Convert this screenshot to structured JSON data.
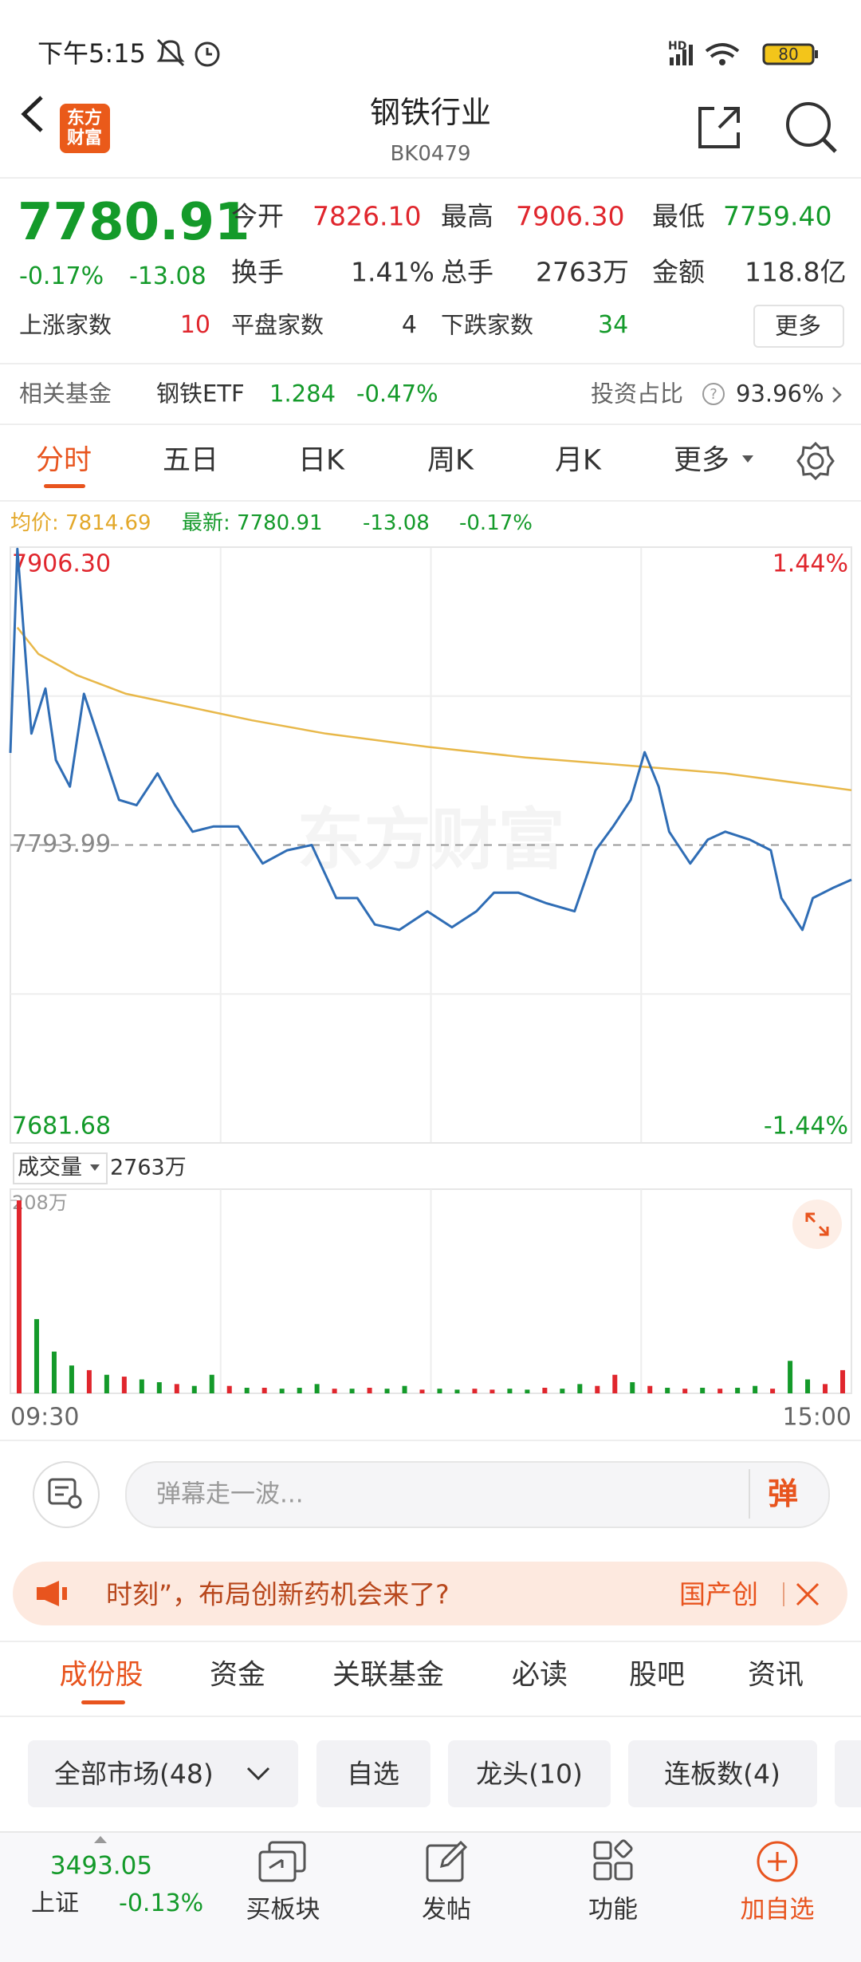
{
  "status_bar": {
    "time": "下午5:15",
    "network": "HD",
    "battery": "80"
  },
  "header": {
    "logo_top": "东方",
    "logo_bottom": "财富",
    "title": "钢铁行业",
    "code": "BK0479"
  },
  "quote": {
    "price": "7780.91",
    "change_pct": "-0.17%",
    "change": "-13.08",
    "open_label": "今开",
    "open": "7826.10",
    "high_label": "最高",
    "high": "7906.30",
    "low_label": "最低",
    "low": "7759.40",
    "turnover_label": "换手",
    "turnover": "1.41%",
    "volume_label": "总手",
    "volume": "2763万",
    "amount_label": "金额",
    "amount": "118.8亿",
    "up_label": "上涨家数",
    "up": "10",
    "flat_label": "平盘家数",
    "flat": "4",
    "down_label": "下跌家数",
    "down": "34",
    "more": "更多"
  },
  "fund": {
    "label": "相关基金",
    "name": "钢铁ETF",
    "price": "1.284",
    "pct": "-0.47%",
    "ratio_label": "投资占比",
    "ratio": "93.96%"
  },
  "tabs": [
    "分时",
    "五日",
    "日K",
    "周K",
    "月K",
    "更多"
  ],
  "chart_header": {
    "avg": "均价: 7814.69",
    "latest": "最新: 7780.91",
    "change": "-13.08",
    "pct": "-0.17%",
    "volume_label": "成交量",
    "volume": "2763万"
  },
  "chart_data": [
    {
      "type": "line",
      "watermark": "东方财富",
      "ylim": [
        7681.68,
        7906.3
      ],
      "yticks": [
        {
          "value": 7906.3,
          "label": "7906.30"
        },
        {
          "value": 7793.99,
          "label": "7793.99"
        },
        {
          "value": 7681.68,
          "label": "7681.68"
        }
      ],
      "y2lim": [
        -1.44,
        1.44
      ],
      "y2ticks": [
        {
          "value": 1.44,
          "label": "1.44%"
        },
        {
          "value": -1.44,
          "label": "-1.44%"
        }
      ],
      "series": [
        {
          "color": "#2f6db5",
          "x": [
            "09:30",
            "09:32",
            "09:34",
            "09:36",
            "09:40",
            "09:43",
            "09:47",
            "09:51",
            "09:56",
            "10:01",
            "10:06",
            "10:12",
            "10:17",
            "10:22",
            "10:28",
            "10:35",
            "10:42",
            "10:49",
            "10:56",
            "11:03",
            "11:09",
            "11:14",
            "11:21",
            "11:29",
            "13:06",
            "13:13",
            "13:18",
            "13:25",
            "13:33",
            "13:41",
            "13:47",
            "13:52",
            "13:57",
            "14:01",
            "14:05",
            "14:08",
            "14:14",
            "14:19",
            "14:24",
            "14:31",
            "14:37",
            "14:40",
            "14:46",
            "14:49",
            "14:55",
            "15:00"
          ],
          "values": [
            7828.7,
            7905.6,
            7870.9,
            7836,
            7853,
            7826,
            7816,
            7851,
            7831,
            7811,
            7809,
            7821,
            7809,
            7799,
            7801,
            7801,
            7787,
            7792,
            7794,
            7774,
            7774,
            7764,
            7762,
            7769,
            7763,
            7769,
            7776,
            7776,
            7772,
            7769,
            7792,
            7801,
            7811,
            7829,
            7816,
            7799,
            7787,
            7796,
            7799,
            7796,
            7792,
            7774,
            7762,
            7774,
            7778,
            7780.91
          ]
        },
        {
          "color": "#e8b84a",
          "x": [
            "09:32",
            "09:38",
            "09:49",
            "10:03",
            "10:21",
            "10:39",
            "11:00",
            "11:29",
            "13:27",
            "13:56",
            "14:24",
            "15:00"
          ],
          "values": [
            7876,
            7866,
            7858,
            7851,
            7846,
            7841,
            7836,
            7831,
            7827,
            7824,
            7821,
            7814.69
          ]
        }
      ]
    },
    {
      "type": "bar",
      "ylim": [
        0,
        208
      ],
      "yticks": [
        {
          "value": 208,
          "label": "208万"
        }
      ],
      "xticks": [
        "09:30",
        "15:00"
      ],
      "values": [
        208,
        80,
        45,
        30,
        25,
        20,
        18,
        15,
        12,
        10,
        8,
        20,
        8,
        6,
        6,
        5,
        6,
        10,
        5,
        5,
        6,
        5,
        8,
        4,
        5,
        4,
        5,
        4,
        5,
        4,
        6,
        5,
        10,
        8,
        20,
        12,
        8,
        6,
        5,
        6,
        5,
        6,
        8,
        5,
        35,
        15,
        10,
        25
      ],
      "colors": [
        "#e0262d",
        "#149a2a",
        "#149a2a",
        "#149a2a",
        "#e0262d",
        "#149a2a",
        "#e0262d",
        "#149a2a",
        "#149a2a",
        "#e0262d",
        "#149a2a",
        "#149a2a",
        "#e0262d",
        "#149a2a",
        "#e0262d",
        "#149a2a",
        "#149a2a",
        "#149a2a",
        "#e0262d",
        "#149a2a",
        "#e0262d",
        "#149a2a",
        "#149a2a",
        "#e0262d",
        "#149a2a",
        "#149a2a",
        "#e0262d",
        "#e0262d",
        "#149a2a",
        "#149a2a",
        "#e0262d",
        "#149a2a",
        "#149a2a",
        "#e0262d",
        "#e0262d",
        "#149a2a",
        "#e0262d",
        "#149a2a",
        "#e0262d",
        "#149a2a",
        "#e0262d",
        "#149a2a",
        "#149a2a",
        "#e0262d",
        "#149a2a",
        "#149a2a",
        "#e0262d",
        "#e0262d"
      ]
    }
  ],
  "danmaku": {
    "placeholder": "弹幕走一波...",
    "button": "弹"
  },
  "banner": {
    "text": "时刻”，布局创新药机会来了?",
    "tag": "国产创"
  },
  "section_tabs": [
    "成份股",
    "资金",
    "关联基金",
    "必读",
    "股吧",
    "资讯"
  ],
  "filters": [
    "全部市场(48)",
    "自选",
    "龙头(10)",
    "连板数(4)"
  ],
  "bottom_bar": {
    "index_value": "3493.05",
    "index_name": "上证",
    "index_pct": "-0.13%",
    "actions": [
      "买板块",
      "发帖",
      "功能",
      "加自选"
    ]
  }
}
